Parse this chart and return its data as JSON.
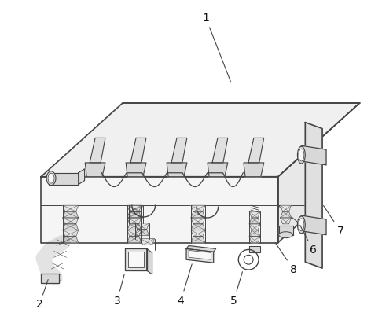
{
  "bg_color": "#ffffff",
  "line_color": "#444444",
  "lw_main": 1.2,
  "lw_thin": 0.7,
  "fig_width": 4.86,
  "fig_height": 4.07,
  "dpi": 100,
  "label_fontsize": 10,
  "fill_top": "#f0f0f0",
  "fill_front": "#f5f5f5",
  "fill_right": "#e8e8e8",
  "fill_dark": "#d8d8d8",
  "fill_mid": "#e0e0e0",
  "fill_light": "#f8f8f8"
}
